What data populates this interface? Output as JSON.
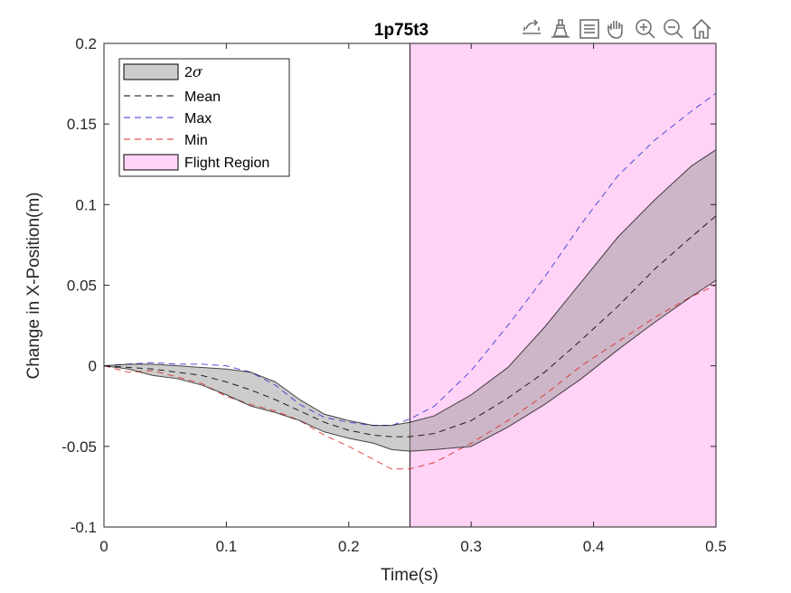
{
  "figure": {
    "title": "1p75t3",
    "toolbar": {
      "icons": [
        "export-icon",
        "brush-icon",
        "datatip-icon",
        "pan-icon",
        "zoom-in-icon",
        "zoom-out-icon",
        "home-icon"
      ]
    }
  },
  "chart_data": {
    "type": "line",
    "title": "1p75t3",
    "xlabel": "Time(s)",
    "ylabel": "Change in X-Position(m)",
    "xlim": [
      0,
      0.5
    ],
    "ylim": [
      -0.1,
      0.2
    ],
    "xticks": [
      0,
      0.1,
      0.2,
      0.3,
      0.4,
      0.5
    ],
    "xtick_labels": [
      "0",
      "0.1",
      "0.2",
      "0.3",
      "0.4",
      "0.5"
    ],
    "yticks": [
      -0.1,
      -0.05,
      0,
      0.05,
      0.1,
      0.15,
      0.2
    ],
    "ytick_labels": [
      "-0.1",
      "-0.05",
      "0",
      "0.05",
      "0.1",
      "0.15",
      "0.2"
    ],
    "grid": false,
    "legend_position": "top-left",
    "legend": [
      {
        "label": "2",
        "symbol": "σ",
        "style": "patch",
        "color": "#cccccc"
      },
      {
        "label": "Mean",
        "style": "dashed",
        "color": "#000000"
      },
      {
        "label": "Max",
        "style": "dashed",
        "color": "#3232d6"
      },
      {
        "label": "Min",
        "style": "dashed",
        "color": "#e02828"
      },
      {
        "label": "Flight Region",
        "style": "patch",
        "color": "#ffd3f5"
      }
    ],
    "flight_region": {
      "x_start": 0.25,
      "x_end": 0.5,
      "color": "#ffd3f5"
    },
    "x": [
      0,
      0.02,
      0.04,
      0.06,
      0.08,
      0.1,
      0.12,
      0.14,
      0.16,
      0.18,
      0.2,
      0.22,
      0.235,
      0.25,
      0.27,
      0.3,
      0.33,
      0.36,
      0.39,
      0.42,
      0.45,
      0.48,
      0.5
    ],
    "series": [
      {
        "name": "Mean",
        "color": "#000000",
        "dash": true,
        "values": [
          0,
          -0.001,
          -0.002,
          -0.004,
          -0.006,
          -0.01,
          -0.015,
          -0.021,
          -0.028,
          -0.035,
          -0.04,
          -0.043,
          -0.044,
          -0.044,
          -0.042,
          -0.034,
          -0.02,
          -0.004,
          0.016,
          0.037,
          0.06,
          0.08,
          0.093
        ]
      },
      {
        "name": "Max",
        "color": "#3232d6",
        "dash": true,
        "values": [
          0,
          0.001,
          0.002,
          0.001,
          0.001,
          0.0,
          -0.004,
          -0.012,
          -0.024,
          -0.032,
          -0.035,
          -0.037,
          -0.037,
          -0.033,
          -0.025,
          -0.003,
          0.025,
          0.055,
          0.088,
          0.118,
          0.14,
          0.158,
          0.169
        ]
      },
      {
        "name": "Min",
        "color": "#e02828",
        "dash": true,
        "values": [
          0,
          -0.004,
          -0.003,
          -0.007,
          -0.011,
          -0.019,
          -0.024,
          -0.028,
          -0.034,
          -0.043,
          -0.05,
          -0.058,
          -0.064,
          -0.064,
          -0.06,
          -0.048,
          -0.034,
          -0.018,
          0.0,
          0.015,
          0.03,
          0.043,
          0.05
        ]
      },
      {
        "name": "2σ upper",
        "color": "#000000",
        "dash": false,
        "values": [
          0,
          0.001,
          0.001,
          0.0,
          -0.001,
          -0.002,
          -0.004,
          -0.01,
          -0.021,
          -0.03,
          -0.034,
          -0.037,
          -0.037,
          -0.035,
          -0.031,
          -0.018,
          -0.001,
          0.024,
          0.052,
          0.08,
          0.103,
          0.124,
          0.134
        ]
      },
      {
        "name": "2σ lower",
        "color": "#000000",
        "dash": false,
        "values": [
          0,
          -0.002,
          -0.006,
          -0.008,
          -0.012,
          -0.018,
          -0.025,
          -0.029,
          -0.034,
          -0.041,
          -0.045,
          -0.048,
          -0.052,
          -0.053,
          -0.052,
          -0.05,
          -0.038,
          -0.024,
          -0.008,
          0.01,
          0.027,
          0.043,
          0.053
        ]
      }
    ]
  }
}
